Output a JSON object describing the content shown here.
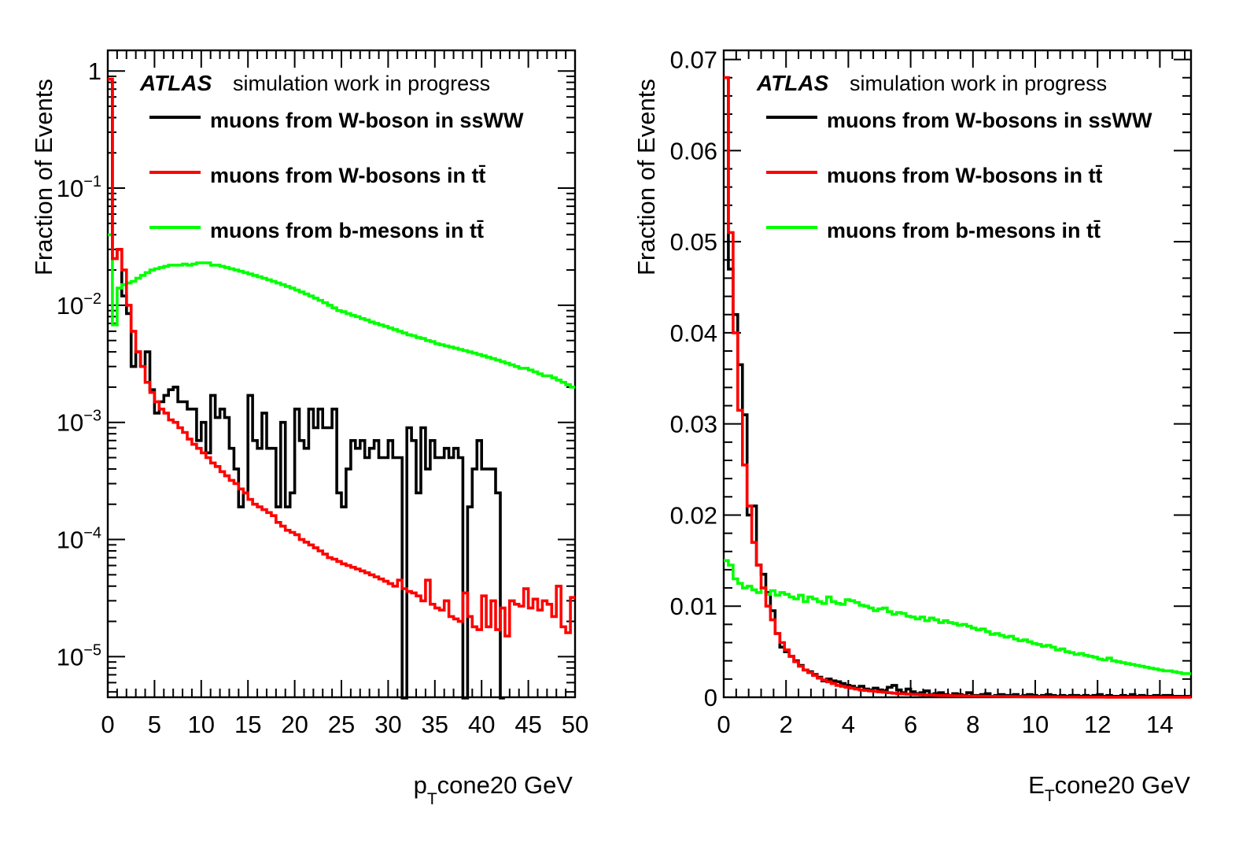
{
  "chart_data": [
    {
      "type": "line",
      "style": "step-histogram",
      "ylabel": "Fraction of Events",
      "xlabel_main": "p",
      "xlabel_sub": "T",
      "xlabel_rest": "cone20 GeV",
      "atlas_label": "ATLAS",
      "atlas_text": "simulation work in progress",
      "xlim": [
        0,
        50
      ],
      "ylim": [
        4.5e-06,
        1.5
      ],
      "yscale": "log",
      "xticks": [
        "0",
        "5",
        "10",
        "15",
        "20",
        "25",
        "30",
        "35",
        "40",
        "45",
        "50"
      ],
      "yticks": [
        {
          "value": 1,
          "base": "1",
          "exp": ""
        },
        {
          "value": 0.1,
          "base": "10",
          "exp": "−1"
        },
        {
          "value": 0.01,
          "base": "10",
          "exp": "−2"
        },
        {
          "value": 0.001,
          "base": "10",
          "exp": "−3"
        },
        {
          "value": 0.0001,
          "base": "10",
          "exp": "−4"
        },
        {
          "value": 1e-05,
          "base": "10",
          "exp": "−5"
        }
      ],
      "bin_width": 0.5,
      "legend_position": "top-right",
      "series": [
        {
          "name": "muons from W-boson in ssWW",
          "color": "#000000",
          "values": [
            0.85,
            0.025,
            0.03,
            0.012,
            0.0085,
            0.003,
            0.004,
            0.003,
            0.004,
            0.0019,
            0.0012,
            0.0015,
            0.0017,
            0.0019,
            0.002,
            0.0015,
            0.0015,
            0.0013,
            0.0013,
            0.0007,
            0.001,
            0.00055,
            0.0017,
            0.0011,
            0.0013,
            0.0011,
            0.0006,
            0.0004,
            0.00019,
            0.00025,
            0.0017,
            0.0007,
            0.0006,
            0.0012,
            0.0006,
            0.0006,
            0.00019,
            0.001,
            0.00019,
            0.00025,
            0.0013,
            0.0007,
            0.0006,
            0.0013,
            0.0009,
            0.0013,
            0.0009,
            0.0009,
            0.0013,
            0.00025,
            0.00019,
            0.0004,
            0.0007,
            0.0006,
            0.0007,
            0.0005,
            0.0006,
            0.0007,
            0.0005,
            0.0005,
            0.0007,
            0.0005,
            0.0005,
            1e-06,
            0.0009,
            0.0007,
            0.00025,
            0.0009,
            0.0004,
            0.0007,
            0.0005,
            0.0005,
            0.0006,
            0.0005,
            0.0006,
            0.0005,
            1e-06,
            0.00019,
            0.0004,
            0.0007,
            0.0004,
            0.0004,
            0.0004,
            0.00025,
            1e-06
          ]
        },
        {
          "name": "muons from W-bosons in tt̄",
          "color": "#ff0000",
          "values": [
            0.85,
            0.025,
            0.03,
            0.02,
            0.01,
            0.006,
            0.004,
            0.003,
            0.0022,
            0.0018,
            0.0015,
            0.0013,
            0.0012,
            0.00105,
            0.001,
            0.0009,
            0.00082,
            0.00072,
            0.00065,
            0.0006,
            0.00055,
            0.0005,
            0.00045,
            0.00042,
            0.00038,
            0.00035,
            0.00032,
            0.0003,
            0.00027,
            0.00025,
            0.00022,
            0.0002,
            0.00019,
            0.00018,
            0.00017,
            0.00016,
            0.00014,
            0.00013,
            0.00012,
            0.000115,
            0.00011,
            0.0001,
            9.5e-05,
            9e-05,
            8.5e-05,
            8e-05,
            7.5e-05,
            7e-05,
            6.8e-05,
            6.5e-05,
            6.2e-05,
            6e-05,
            5.8e-05,
            5.6e-05,
            5.4e-05,
            5.2e-05,
            5e-05,
            4.8e-05,
            4.6e-05,
            4.4e-05,
            4.2e-05,
            4e-05,
            4.5e-05,
            3.8e-05,
            3.6e-05,
            3.5e-05,
            3.3e-05,
            3e-05,
            4.5e-05,
            2.8e-05,
            2.6e-05,
            2.5e-05,
            3e-05,
            2.2e-05,
            2.1e-05,
            2e-05,
            3.5e-05,
            2.2e-05,
            1.8e-05,
            1.7e-05,
            3.3e-05,
            1.8e-05,
            3e-05,
            1.7e-05,
            2.6e-05,
            1.5e-05,
            3e-05,
            2.8e-05,
            2.7e-05,
            3.8e-05,
            2.6e-05,
            3.1e-05,
            2.5e-05,
            3e-05,
            2.8e-05,
            2.2e-05,
            4e-05,
            1.8e-05,
            1.6e-05,
            3.2e-05
          ]
        },
        {
          "name": "muons from b-mesons in tt̄",
          "color": "#00ff00",
          "values": [
            0.04,
            0.0068,
            0.014,
            0.015,
            0.0155,
            0.016,
            0.017,
            0.018,
            0.019,
            0.02,
            0.0205,
            0.021,
            0.0215,
            0.022,
            0.022,
            0.022,
            0.0225,
            0.022,
            0.0225,
            0.023,
            0.023,
            0.023,
            0.022,
            0.022,
            0.0215,
            0.021,
            0.0205,
            0.02,
            0.0195,
            0.019,
            0.0185,
            0.018,
            0.0175,
            0.017,
            0.0165,
            0.016,
            0.0155,
            0.015,
            0.0145,
            0.014,
            0.0135,
            0.013,
            0.0125,
            0.012,
            0.0115,
            0.011,
            0.0105,
            0.01,
            0.0095,
            0.009,
            0.0088,
            0.0085,
            0.0082,
            0.008,
            0.0077,
            0.0075,
            0.0072,
            0.007,
            0.0068,
            0.0066,
            0.0064,
            0.0062,
            0.006,
            0.0058,
            0.0056,
            0.0055,
            0.0053,
            0.0052,
            0.005,
            0.0049,
            0.0047,
            0.0046,
            0.0045,
            0.0044,
            0.0043,
            0.0042,
            0.0041,
            0.004,
            0.0039,
            0.0038,
            0.0037,
            0.0036,
            0.0035,
            0.0034,
            0.0033,
            0.0032,
            0.0031,
            0.003,
            0.0029,
            0.0029,
            0.0028,
            0.0027,
            0.0026,
            0.0025,
            0.0025,
            0.0024,
            0.0023,
            0.0022,
            0.0021,
            0.002
          ]
        }
      ]
    },
    {
      "type": "line",
      "style": "step-histogram",
      "ylabel": "Fraction of Events",
      "xlabel_main": "E",
      "xlabel_sub": "T",
      "xlabel_rest": "cone20 GeV",
      "atlas_label": "ATLAS",
      "atlas_text": "simulation work in progress",
      "xlim": [
        0,
        15
      ],
      "ylim": [
        0,
        0.071
      ],
      "yscale": "linear",
      "xticks": [
        "0",
        "2",
        "4",
        "6",
        "8",
        "10",
        "12",
        "14"
      ],
      "yticks": [
        {
          "value": 0,
          "label": "0"
        },
        {
          "value": 0.01,
          "label": "0.01"
        },
        {
          "value": 0.02,
          "label": "0.02"
        },
        {
          "value": 0.03,
          "label": "0.03"
        },
        {
          "value": 0.04,
          "label": "0.04"
        },
        {
          "value": 0.05,
          "label": "0.05"
        },
        {
          "value": 0.06,
          "label": "0.06"
        },
        {
          "value": 0.07,
          "label": "0.07"
        }
      ],
      "bin_width": 0.15,
      "legend_position": "top-right",
      "series": [
        {
          "name": "muons from W-bosons in ssWW",
          "color": "#000000",
          "values": [
            0.068,
            0.047,
            0.042,
            0.0365,
            0.031,
            0.02,
            0.021,
            0.0145,
            0.0135,
            0.0115,
            0.0095,
            0.007,
            0.0055,
            0.005,
            0.0045,
            0.004,
            0.0035,
            0.003,
            0.0028,
            0.0025,
            0.0022,
            0.0018,
            0.002,
            0.0018,
            0.0017,
            0.0015,
            0.0013,
            0.0012,
            0.001,
            0.0012,
            0.0009,
            0.0008,
            0.001,
            0.0008,
            0.0007,
            0.0011,
            0.0013,
            0.0008,
            0.0005,
            0.0009,
            0.0006,
            0.0004,
            0.0005,
            0.0007,
            0.0003,
            0.0004,
            0.0005,
            0.0003,
            0.0002,
            0.0004,
            0.0003,
            0.0002,
            0.0005,
            0.0002,
            0.0002,
            0.0003,
            0.0004,
            0.0001,
            0.0002,
            0.0003,
            0.0002,
            0.0002,
            0.0003,
            0.0001,
            0.0002,
            0.0003,
            0.0002,
            0.0001,
            0.0002,
            0.0003,
            0.0002,
            0.0001,
            0.0002,
            0.0001,
            0.0002,
            0.0002,
            0.0001,
            0.0002,
            0.0001,
            0.0002,
            0.0003,
            0.0001,
            0.0002,
            0.0001,
            0.0001,
            0.0002,
            0.0001,
            0.0003,
            0.0001,
            0.0002,
            0.0001,
            0.0001,
            0.0002,
            0.0001,
            0.0002,
            0.0002,
            0.0001,
            0.0001,
            0.0001,
            0.0001
          ]
        },
        {
          "name": "muons from W-bosons in tt̄",
          "color": "#ff0000",
          "values": [
            0.068,
            0.051,
            0.04,
            0.0315,
            0.0255,
            0.021,
            0.017,
            0.0145,
            0.012,
            0.01,
            0.0085,
            0.007,
            0.006,
            0.0052,
            0.0045,
            0.0039,
            0.0034,
            0.003,
            0.0027,
            0.0024,
            0.0021,
            0.0019,
            0.0017,
            0.0015,
            0.0013,
            0.0012,
            0.0011,
            0.001,
            0.0009,
            0.0008,
            0.00075,
            0.0007,
            0.00065,
            0.0006,
            0.00055,
            0.0005,
            0.00045,
            0.0004,
            0.00038,
            0.00035,
            0.00032,
            0.0003,
            0.00028,
            0.00026,
            0.00024,
            0.00022,
            0.0002,
            0.00019,
            0.00018,
            0.00017,
            0.00016,
            0.00015,
            0.00014,
            0.00013,
            0.00012,
            0.00011,
            0.0001,
            0.0001,
            9e-05,
            9e-05,
            8e-05,
            8e-05,
            7e-05,
            7e-05,
            6e-05,
            6e-05,
            5e-05,
            5e-05,
            5e-05,
            4e-05,
            4e-05,
            4e-05,
            3e-05,
            3e-05,
            3e-05,
            3e-05,
            2e-05,
            2e-05,
            2e-05,
            2e-05,
            2e-05,
            2e-05,
            1e-05,
            1e-05,
            1e-05,
            1e-05,
            1e-05,
            1e-05,
            1e-05,
            1e-05,
            1e-05,
            1e-05,
            1e-05,
            1e-05,
            1e-05,
            1e-05,
            1e-05,
            1e-05,
            1e-05,
            1e-05
          ]
        },
        {
          "name": "muons from b-mesons in tt̄",
          "color": "#00ff00",
          "values": [
            0.015,
            0.0145,
            0.013,
            0.0125,
            0.012,
            0.0122,
            0.0118,
            0.0115,
            0.012,
            0.0113,
            0.0117,
            0.0112,
            0.0115,
            0.0113,
            0.011,
            0.0108,
            0.0112,
            0.0105,
            0.011,
            0.0108,
            0.0105,
            0.0103,
            0.011,
            0.0105,
            0.0103,
            0.0102,
            0.0107,
            0.0106,
            0.0104,
            0.0101,
            0.01,
            0.0098,
            0.0095,
            0.0097,
            0.0098,
            0.0094,
            0.0091,
            0.0093,
            0.0092,
            0.0089,
            0.0088,
            0.0086,
            0.0088,
            0.0084,
            0.0087,
            0.0085,
            0.0082,
            0.0084,
            0.0082,
            0.0081,
            0.0079,
            0.008,
            0.0078,
            0.0076,
            0.0074,
            0.0075,
            0.0072,
            0.0069,
            0.007,
            0.0068,
            0.0066,
            0.0067,
            0.0064,
            0.0062,
            0.0063,
            0.0061,
            0.0059,
            0.0058,
            0.0056,
            0.0057,
            0.0055,
            0.0052,
            0.0053,
            0.005,
            0.0049,
            0.0047,
            0.0048,
            0.0046,
            0.0045,
            0.0044,
            0.0042,
            0.0041,
            0.0043,
            0.004,
            0.0039,
            0.0038,
            0.0037,
            0.0036,
            0.0035,
            0.0034,
            0.0033,
            0.0032,
            0.0031,
            0.003,
            0.0029,
            0.0029,
            0.0028,
            0.0027,
            0.0026,
            0.0026
          ]
        }
      ]
    }
  ]
}
